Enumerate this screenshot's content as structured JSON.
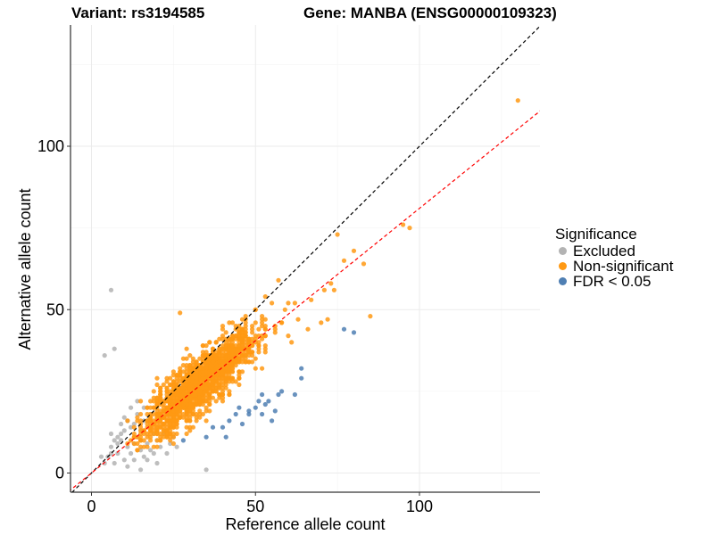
{
  "titles": {
    "variant": "Variant: rs3194585",
    "gene": "Gene: MANBA (ENSG00000109323)"
  },
  "legend": {
    "title": "Significance",
    "items": [
      {
        "label": "Excluded",
        "color": "#b3b3b3"
      },
      {
        "label": "Non-significant",
        "color": "#ff9913"
      },
      {
        "label": "FDR < 0.05",
        "color": "#4f7fb3"
      }
    ]
  },
  "chart_data": {
    "type": "scatter",
    "title": "Variant: rs3194585    Gene: MANBA (ENSG00000109323)",
    "xlabel": "Reference allele count",
    "ylabel": "Alternative allele count",
    "xlim": [
      -6,
      137
    ],
    "ylim": [
      -6,
      137
    ],
    "xticks": [
      0,
      50,
      100
    ],
    "yticks": [
      0,
      50,
      100
    ],
    "grid": true,
    "legend_position": "right",
    "reference_lines": [
      {
        "name": "identity",
        "slope": 1.0,
        "intercept": 0,
        "style": "dashed",
        "color": "#000000"
      },
      {
        "name": "fit",
        "slope": 0.81,
        "intercept": 0,
        "style": "dashed",
        "color": "#ff0000"
      }
    ],
    "series": [
      {
        "name": "Excluded",
        "color": "#b3b3b3",
        "points": [
          [
            6,
            56
          ],
          [
            7,
            38
          ],
          [
            4,
            36
          ],
          [
            35,
            1
          ],
          [
            5,
            5
          ],
          [
            6,
            8
          ],
          [
            8,
            6
          ],
          [
            9,
            10
          ],
          [
            10,
            13
          ],
          [
            11,
            8
          ],
          [
            7,
            3
          ],
          [
            8,
            11
          ],
          [
            12,
            6
          ],
          [
            13,
            9
          ],
          [
            10,
            4
          ],
          [
            15,
            7
          ],
          [
            14,
            11
          ],
          [
            12,
            14
          ],
          [
            9,
            12
          ],
          [
            11,
            16
          ],
          [
            16,
            5
          ],
          [
            17,
            9
          ],
          [
            18,
            7
          ],
          [
            19,
            12
          ],
          [
            20,
            10
          ],
          [
            21,
            8
          ],
          [
            13,
            15
          ],
          [
            14,
            18
          ],
          [
            10,
            17
          ],
          [
            12,
            20
          ],
          [
            15,
            13
          ],
          [
            16,
            16
          ],
          [
            18,
            14
          ],
          [
            22,
            12
          ],
          [
            24,
            9
          ],
          [
            25,
            11
          ],
          [
            26,
            8
          ],
          [
            3,
            5
          ],
          [
            4,
            3
          ],
          [
            6,
            6
          ],
          [
            8,
            9
          ],
          [
            13,
            4
          ],
          [
            11,
            2
          ],
          [
            15,
            1
          ],
          [
            17,
            4
          ],
          [
            19,
            6
          ],
          [
            20,
            3
          ],
          [
            23,
            6
          ],
          [
            14,
            22
          ],
          [
            16,
            20
          ],
          [
            18,
            18
          ],
          [
            9,
            15
          ],
          [
            7,
            10
          ],
          [
            6,
            12
          ]
        ]
      },
      {
        "name": "FDR < 0.05",
        "color": "#4f7fb3",
        "points": [
          [
            80,
            43
          ],
          [
            77,
            44
          ],
          [
            64,
            32
          ],
          [
            64,
            29
          ],
          [
            62,
            24
          ],
          [
            57,
            24
          ],
          [
            52,
            24
          ],
          [
            53,
            21
          ],
          [
            50,
            20
          ],
          [
            48,
            19
          ],
          [
            48,
            18
          ],
          [
            52,
            18
          ],
          [
            55,
            16
          ],
          [
            45,
            20
          ],
          [
            44,
            18
          ],
          [
            42,
            16
          ],
          [
            40,
            14
          ],
          [
            35,
            11
          ],
          [
            28,
            10
          ],
          [
            41,
            11
          ],
          [
            37,
            14
          ],
          [
            46,
            15
          ],
          [
            51,
            22
          ],
          [
            54,
            22
          ],
          [
            56,
            19
          ],
          [
            58,
            25
          ]
        ]
      },
      {
        "name": "Non-significant",
        "color": "#ff9913",
        "points": [
          [
            130,
            114
          ],
          [
            95,
            76
          ],
          [
            97,
            75
          ],
          [
            75,
            73
          ],
          [
            80,
            68
          ],
          [
            83,
            64
          ],
          [
            77,
            65
          ],
          [
            73,
            58
          ],
          [
            71,
            56
          ],
          [
            57,
            59
          ],
          [
            59,
            50
          ],
          [
            62,
            52
          ],
          [
            63,
            47
          ],
          [
            67,
            53
          ],
          [
            70,
            46
          ],
          [
            72,
            47
          ],
          [
            85,
            48
          ],
          [
            74,
            56
          ],
          [
            66,
            44
          ],
          [
            61,
            40
          ],
          [
            53,
            54
          ],
          [
            55,
            52
          ],
          [
            50,
            50
          ],
          [
            52,
            47
          ],
          [
            27,
            49
          ],
          [
            49,
            45
          ],
          [
            46,
            47
          ],
          [
            58,
            46
          ],
          [
            60,
            42
          ],
          [
            56,
            44
          ]
        ]
      }
    ]
  },
  "axes": {
    "xlabel": "Reference allele count",
    "ylabel": "Alternative allele count",
    "xtick_labels": [
      "0",
      "50",
      "100"
    ],
    "ytick_labels": [
      "0",
      "50",
      "100"
    ]
  }
}
